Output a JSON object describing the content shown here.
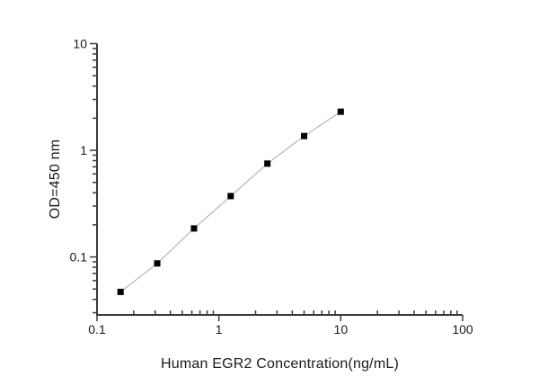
{
  "figure": {
    "background": "#ffffff",
    "axis_color": "#3a3a3a",
    "tick_label_color": "#1a1a1a",
    "curve_line_color": "#aaaaaa",
    "marker_color": "#000000"
  },
  "chart_data": {
    "type": "scatter",
    "subtype": "line-with-square-markers",
    "title": "",
    "xlabel": "Human EGR2 Concentration(ng/mL)",
    "ylabel": "OD=450 nm",
    "x_scale": "log",
    "y_scale": "log",
    "xlim": [
      0.1,
      100
    ],
    "ylim": [
      0.0286,
      10
    ],
    "grid": false,
    "legend": null,
    "x": [
      0.156,
      0.312,
      0.625,
      1.25,
      2.5,
      5,
      10
    ],
    "y": [
      0.047,
      0.087,
      0.185,
      0.372,
      0.75,
      1.36,
      2.3
    ],
    "x_major_ticks": [
      0.1,
      1,
      10,
      100
    ],
    "x_major_labels": [
      "0.1",
      "1",
      "10",
      "100"
    ],
    "y_major_ticks": [
      0.1,
      1,
      10
    ],
    "y_major_labels": [
      "0.1",
      "1",
      "10"
    ]
  }
}
